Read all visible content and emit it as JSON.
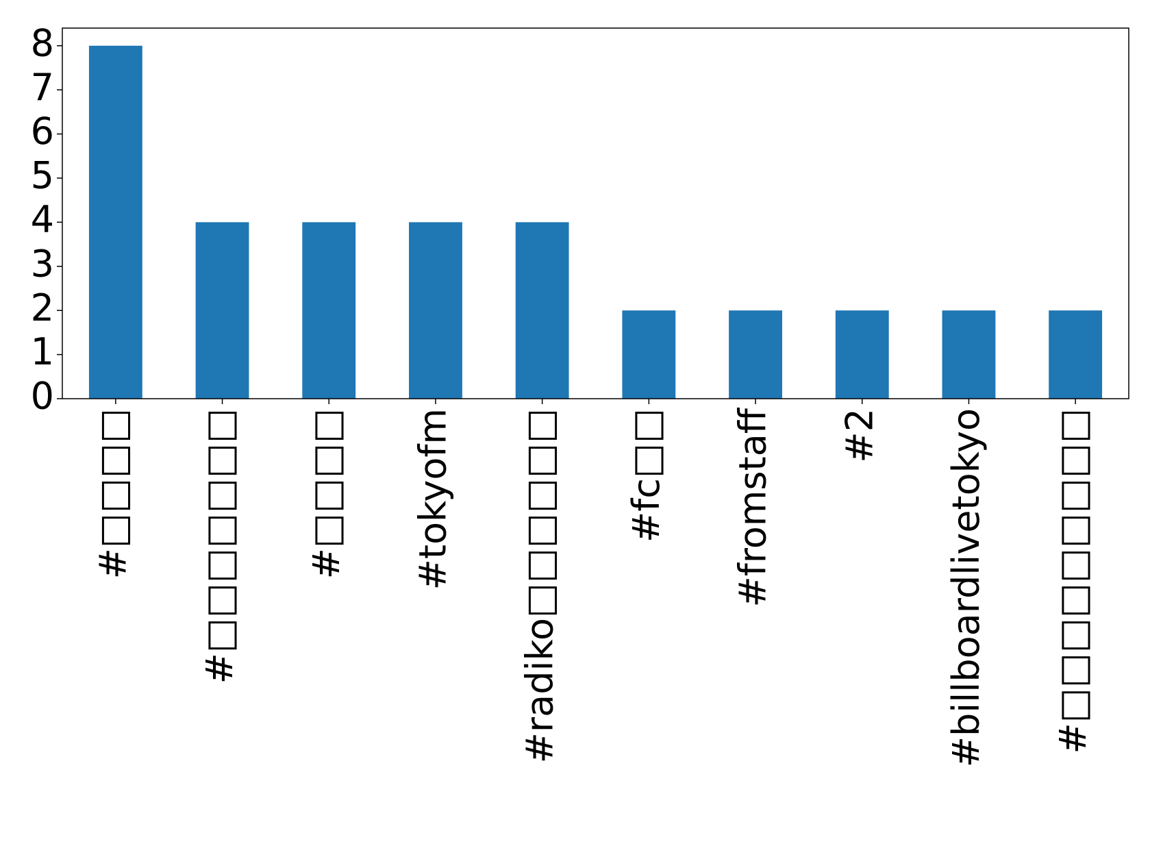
{
  "chart_data": {
    "type": "bar",
    "categories": [
      "#□□□□",
      "#□□□□□□□",
      "#□□□□",
      "#tokyofm",
      "#radiko□□□□□□",
      "#fc□□",
      "#fromstaff",
      "#2",
      "#billboardlivetokyo",
      "#□□□□□□□□□"
    ],
    "values": [
      8,
      4,
      4,
      4,
      4,
      2,
      2,
      2,
      2,
      2
    ],
    "color": "#1f77b4",
    "ylim": [
      0,
      8.4
    ],
    "yticks": [
      0,
      1,
      2,
      3,
      4,
      5,
      6,
      7,
      8
    ],
    "grid": false
  }
}
